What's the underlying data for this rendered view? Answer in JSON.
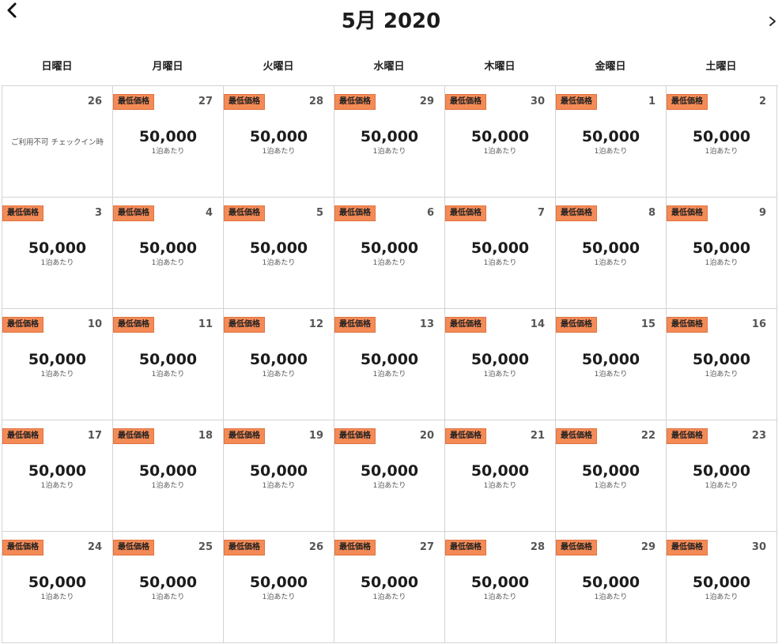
{
  "header": {
    "title": "5月 2020",
    "prev_icon": "chevron-left-icon",
    "next_icon": "chevron-right-icon"
  },
  "weekdays": [
    "日曜日",
    "月曜日",
    "火曜日",
    "水曜日",
    "木曜日",
    "金曜日",
    "土曜日"
  ],
  "colors": {
    "badge": "#f48a56",
    "border": "#d3d3d3"
  },
  "calendar": {
    "weeks": [
      [
        {
          "day": "26",
          "unavailable": "ご利用不可 チェックイン時"
        },
        {
          "day": "27",
          "badge": "最低価格",
          "price": "50,000",
          "per_night": "1泊あたり"
        },
        {
          "day": "28",
          "badge": "最低価格",
          "price": "50,000",
          "per_night": "1泊あたり"
        },
        {
          "day": "29",
          "badge": "最低価格",
          "price": "50,000",
          "per_night": "1泊あたり"
        },
        {
          "day": "30",
          "badge": "最低価格",
          "price": "50,000",
          "per_night": "1泊あたり"
        },
        {
          "day": "1",
          "badge": "最低価格",
          "price": "50,000",
          "per_night": "1泊あたり"
        },
        {
          "day": "2",
          "badge": "最低価格",
          "price": "50,000",
          "per_night": "1泊あたり"
        }
      ],
      [
        {
          "day": "3",
          "badge": "最低価格",
          "price": "50,000",
          "per_night": "1泊あたり"
        },
        {
          "day": "4",
          "badge": "最低価格",
          "price": "50,000",
          "per_night": "1泊あたり"
        },
        {
          "day": "5",
          "badge": "最低価格",
          "price": "50,000",
          "per_night": "1泊あたり"
        },
        {
          "day": "6",
          "badge": "最低価格",
          "price": "50,000",
          "per_night": "1泊あたり"
        },
        {
          "day": "7",
          "badge": "最低価格",
          "price": "50,000",
          "per_night": "1泊あたり"
        },
        {
          "day": "8",
          "badge": "最低価格",
          "price": "50,000",
          "per_night": "1泊あたり"
        },
        {
          "day": "9",
          "badge": "最低価格",
          "price": "50,000",
          "per_night": "1泊あたり"
        }
      ],
      [
        {
          "day": "10",
          "badge": "最低価格",
          "price": "50,000",
          "per_night": "1泊あたり"
        },
        {
          "day": "11",
          "badge": "最低価格",
          "price": "50,000",
          "per_night": "1泊あたり"
        },
        {
          "day": "12",
          "badge": "最低価格",
          "price": "50,000",
          "per_night": "1泊あたり"
        },
        {
          "day": "13",
          "badge": "最低価格",
          "price": "50,000",
          "per_night": "1泊あたり"
        },
        {
          "day": "14",
          "badge": "最低価格",
          "price": "50,000",
          "per_night": "1泊あたり"
        },
        {
          "day": "15",
          "badge": "最低価格",
          "price": "50,000",
          "per_night": "1泊あたり"
        },
        {
          "day": "16",
          "badge": "最低価格",
          "price": "50,000",
          "per_night": "1泊あたり"
        }
      ],
      [
        {
          "day": "17",
          "badge": "最低価格",
          "price": "50,000",
          "per_night": "1泊あたり"
        },
        {
          "day": "18",
          "badge": "最低価格",
          "price": "50,000",
          "per_night": "1泊あたり"
        },
        {
          "day": "19",
          "badge": "最低価格",
          "price": "50,000",
          "per_night": "1泊あたり"
        },
        {
          "day": "20",
          "badge": "最低価格",
          "price": "50,000",
          "per_night": "1泊あたり"
        },
        {
          "day": "21",
          "badge": "最低価格",
          "price": "50,000",
          "per_night": "1泊あたり"
        },
        {
          "day": "22",
          "badge": "最低価格",
          "price": "50,000",
          "per_night": "1泊あたり"
        },
        {
          "day": "23",
          "badge": "最低価格",
          "price": "50,000",
          "per_night": "1泊あたり"
        }
      ],
      [
        {
          "day": "24",
          "badge": "最低価格",
          "price": "50,000",
          "per_night": "1泊あたり"
        },
        {
          "day": "25",
          "badge": "最低価格",
          "price": "50,000",
          "per_night": "1泊あたり"
        },
        {
          "day": "26",
          "badge": "最低価格",
          "price": "50,000",
          "per_night": "1泊あたり"
        },
        {
          "day": "27",
          "badge": "最低価格",
          "price": "50,000",
          "per_night": "1泊あたり"
        },
        {
          "day": "28",
          "badge": "最低価格",
          "price": "50,000",
          "per_night": "1泊あたり"
        },
        {
          "day": "29",
          "badge": "最低価格",
          "price": "50,000",
          "per_night": "1泊あたり"
        },
        {
          "day": "30",
          "badge": "最低価格",
          "price": "50,000",
          "per_night": "1泊あたり"
        }
      ]
    ]
  }
}
